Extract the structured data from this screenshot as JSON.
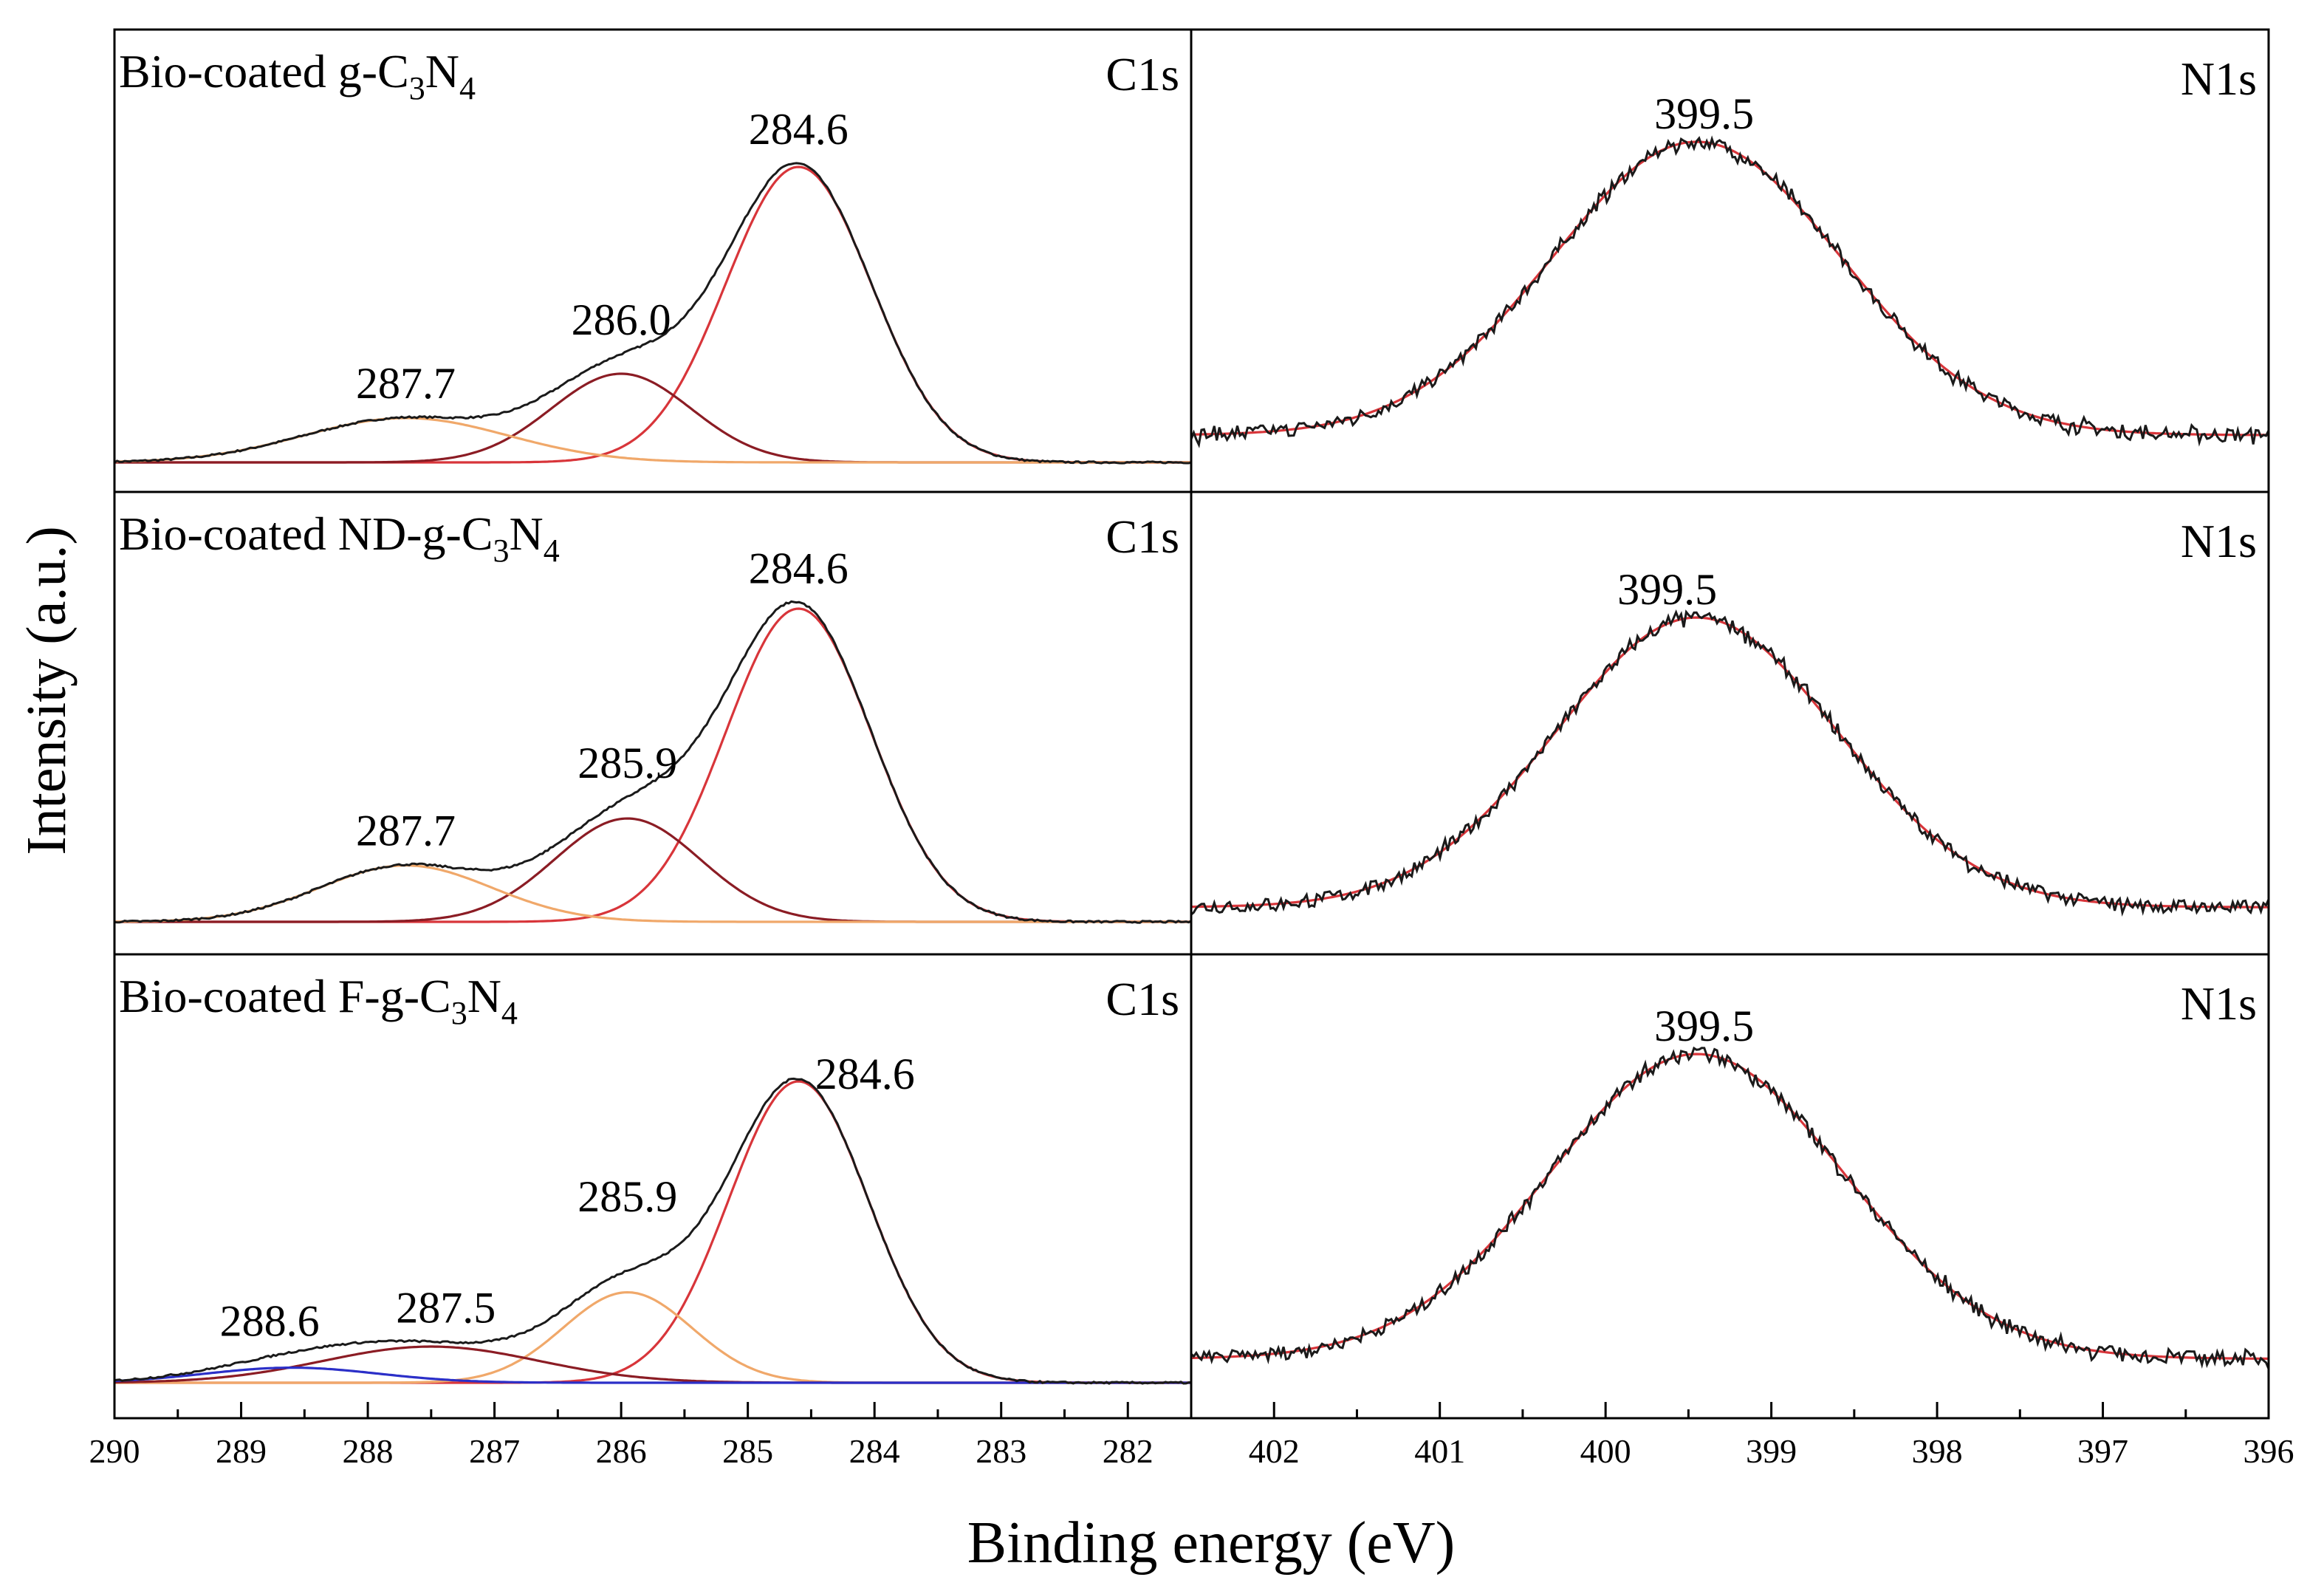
{
  "figure": {
    "ylabel": "Intensity (a.u.)",
    "xlabel": "Binding energy (eV)"
  },
  "colors": {
    "envelope": "#1a1a1a",
    "main_fit": "#d8353a",
    "dark_red": "#8b1c24",
    "orange": "#f0a86a",
    "blue": "#2b2fc8",
    "axis": "#000000"
  },
  "chart_data": [
    {
      "type": "line",
      "panel": "C1s (top)",
      "title": "Bio-coated g-C3N4",
      "sample": {
        "main": "Bio-coated g-C",
        "sub1": "3",
        "mid": "N",
        "sub2": "4"
      },
      "region_label": "C1s",
      "xlim": [
        290,
        281.5
      ],
      "ylim": [
        0,
        1.24
      ],
      "peaks": [
        {
          "center": 284.6,
          "height": 1.0,
          "fwhm": 1.35,
          "color": "main_fit",
          "label": "284.6"
        },
        {
          "center": 286.0,
          "height": 0.3,
          "fwhm": 1.3,
          "color": "dark_red",
          "label": "286.0"
        },
        {
          "center": 287.7,
          "height": 0.15,
          "fwhm": 1.9,
          "color": "orange",
          "label": "287.7"
        }
      ]
    },
    {
      "type": "line",
      "panel": "N1s (top)",
      "region_label": "N1s",
      "xlim": [
        402.5,
        396
      ],
      "ylim": [
        0,
        1.2
      ],
      "baseline": 0.03,
      "peaks": [
        {
          "center": 399.45,
          "height": 1.0,
          "fwhm": 2.05,
          "color": "main_fit",
          "label": "399.5"
        }
      ]
    },
    {
      "type": "line",
      "panel": "C1s (middle)",
      "title": "Bio-coated ND-g-C3N4",
      "sample": {
        "main": "Bio-coated ND-g-C",
        "sub1": "3",
        "mid": "N",
        "sub2": "4"
      },
      "region_label": "C1s",
      "xlim": [
        290,
        281.5
      ],
      "ylim": [
        0,
        1.24
      ],
      "peaks": [
        {
          "center": 284.6,
          "height": 1.0,
          "fwhm": 1.35,
          "color": "main_fit",
          "label": "284.6"
        },
        {
          "center": 285.95,
          "height": 0.33,
          "fwhm": 1.35,
          "color": "dark_red",
          "label": "285.9"
        },
        {
          "center": 287.7,
          "height": 0.18,
          "fwhm": 1.6,
          "color": "orange",
          "label": "287.7"
        }
      ]
    },
    {
      "type": "line",
      "panel": "N1s (middle)",
      "region_label": "N1s",
      "xlim": [
        402.5,
        396
      ],
      "ylim": [
        0,
        1.2
      ],
      "baseline": 0.03,
      "peaks": [
        {
          "center": 399.45,
          "height": 1.0,
          "fwhm": 2.0,
          "color": "main_fit",
          "label": "399.5"
        }
      ]
    },
    {
      "type": "line",
      "panel": "C1s (bottom)",
      "title": "Bio-coated F-g-C3N4",
      "sample": {
        "main": "Bio-coated F-g-C",
        "sub1": "3",
        "mid": "N",
        "sub2": "4"
      },
      "region_label": "C1s",
      "xlim": [
        290,
        281.5
      ],
      "ylim": [
        0,
        1.24
      ],
      "peaks": [
        {
          "center": 284.6,
          "height": 1.0,
          "fwhm": 1.3,
          "color": "main_fit",
          "label": "284.6"
        },
        {
          "center": 285.95,
          "height": 0.3,
          "fwhm": 1.2,
          "color": "orange",
          "label": "285.9"
        },
        {
          "center": 287.5,
          "height": 0.12,
          "fwhm": 2.0,
          "color": "dark_red",
          "label": "287.5"
        },
        {
          "center": 288.6,
          "height": 0.05,
          "fwhm": 1.6,
          "color": "blue",
          "label": "288.6"
        }
      ]
    },
    {
      "type": "line",
      "panel": "N1s (bottom)",
      "region_label": "N1s",
      "xlim": [
        402.5,
        396
      ],
      "ylim": [
        0,
        1.2
      ],
      "baseline": 0.03,
      "peaks": [
        {
          "center": 399.45,
          "height": 1.0,
          "fwhm": 2.1,
          "color": "main_fit",
          "label": "399.5"
        }
      ]
    }
  ],
  "axes": {
    "c1s_ticks": [
      "290",
      "289",
      "288",
      "287",
      "286",
      "285",
      "284",
      "283",
      "282"
    ],
    "c1s_tick_values": [
      290,
      289,
      288,
      287,
      286,
      285,
      284,
      283,
      282
    ],
    "n1s_ticks": [
      "402",
      "401",
      "400",
      "399",
      "398",
      "397",
      "396"
    ],
    "n1s_tick_values": [
      402,
      401,
      400,
      399,
      398,
      397,
      396
    ]
  }
}
